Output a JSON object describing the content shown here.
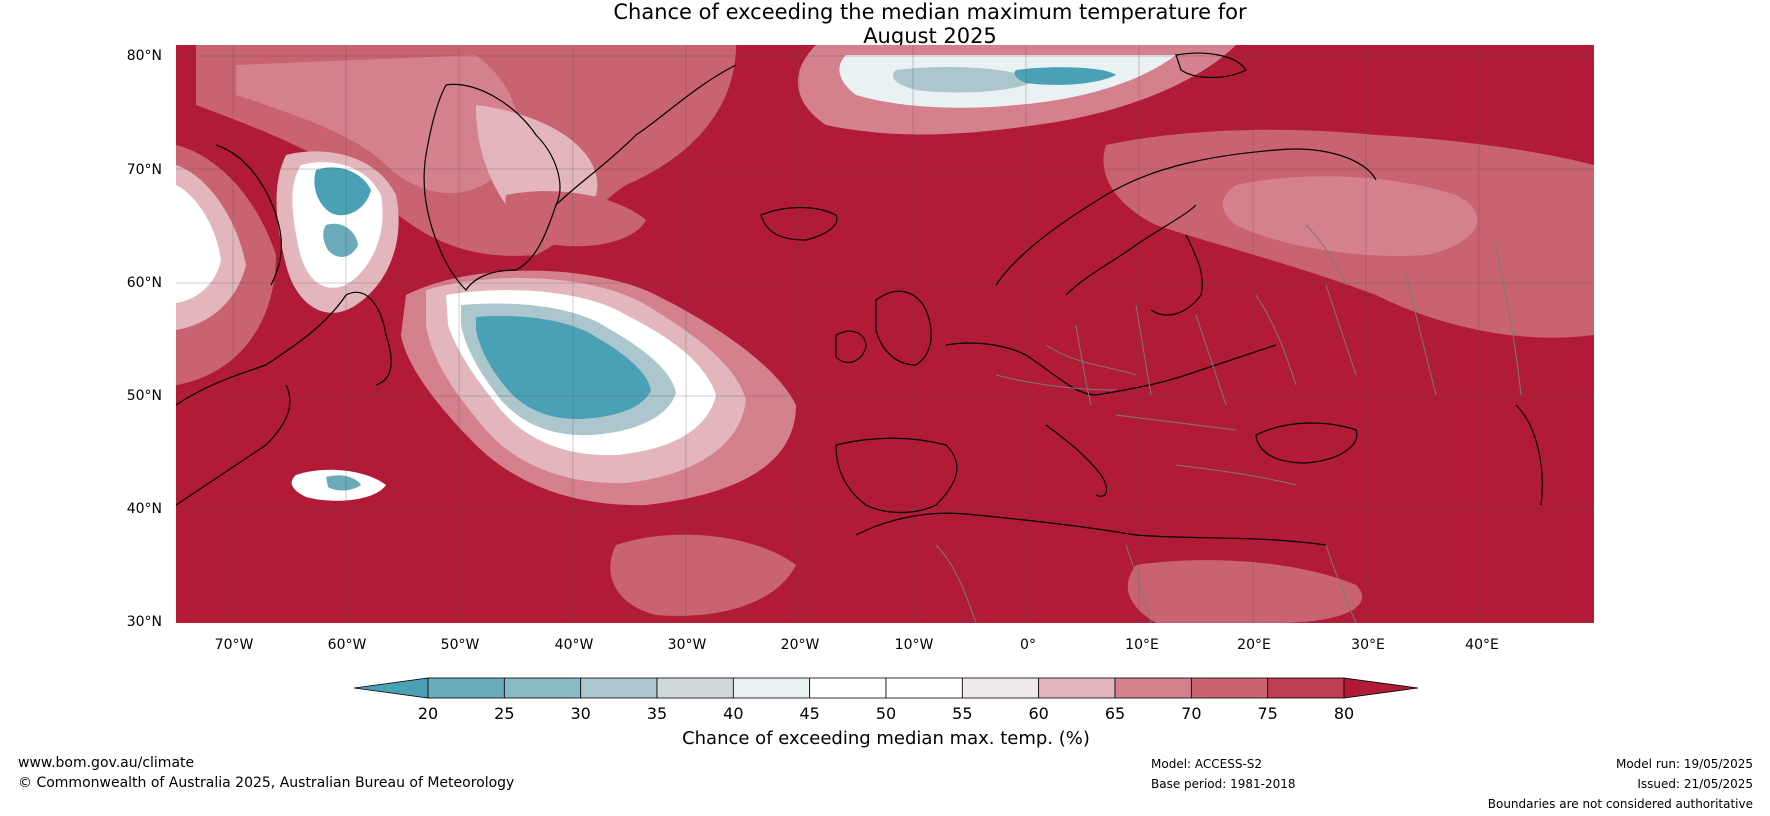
{
  "title": {
    "line1": "Chance of exceeding the median maximum temperature for",
    "line2": "August 2025"
  },
  "map": {
    "lat_labels": [
      "80°N",
      "70°N",
      "60°N",
      "50°N",
      "40°N",
      "30°N"
    ],
    "lon_labels": [
      "70°W",
      "60°W",
      "50°W",
      "40°W",
      "30°W",
      "20°W",
      "10°W",
      "0°",
      "10°E",
      "20°E",
      "30°E",
      "40°E"
    ],
    "background_color": "#b11b36"
  },
  "colorbar": {
    "ticks": [
      "20",
      "25",
      "30",
      "35",
      "40",
      "45",
      "50",
      "55",
      "60",
      "65",
      "70",
      "75",
      "80"
    ],
    "colors": [
      "#4aa1b6",
      "#6aaabb",
      "#8ab8c4",
      "#abc6cc",
      "#cfd9dc",
      "#eaf1f2",
      "#ffffff",
      "#ffffff",
      "#eeeaeb",
      "#e2b6bc",
      "#d4808d",
      "#c8636f",
      "#bd3d51",
      "#b11b36"
    ],
    "label": "Chance of exceeding median max. temp. (%)"
  },
  "footer": {
    "website": "www.bom.gov.au/climate",
    "copyright": "© Commonwealth of Australia 2025, Australian Bureau of Meteorology",
    "model": "Model: ACCESS-S2",
    "base_period": "Base period: 1981-2018",
    "model_run": "Model run: 19/05/2025",
    "issued": "Issued: 21/05/2025",
    "disclaimer": "Boundaries are not considered authoritative"
  }
}
